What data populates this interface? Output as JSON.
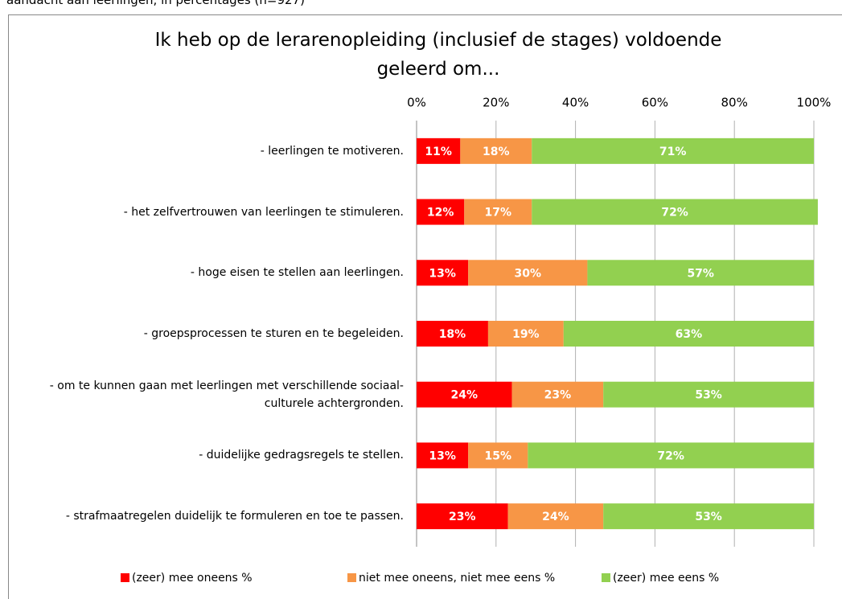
{
  "caption": "aandacht aan leerlingen, in percentages (n=927)",
  "chart_data": {
    "type": "stacked-barh",
    "title": "Ik heb op de lerarenopleiding (inclusief de stages) voldoende geleerd om...",
    "categories": [
      "- leerlingen te motiveren.",
      "- het zelfvertrouwen van leerlingen te stimuleren.",
      "- hoge eisen te stellen aan leerlingen.",
      "- groepsprocessen te sturen en te begeleiden.",
      "- om te kunnen gaan met leerlingen met verschillende sociaal-culturele achtergronden.",
      "- duidelijke gedragsregels te stellen.",
      "- strafmaatregelen duidelijk te formuleren en toe te passen."
    ],
    "series": [
      {
        "name": "(zeer) mee oneens %",
        "color": "#ff0000",
        "values": [
          11,
          12,
          13,
          18,
          24,
          13,
          23
        ],
        "value_labels": [
          "11%",
          "12%",
          "13%",
          "18%",
          "24%",
          "13%",
          "23%"
        ]
      },
      {
        "name": "niet mee oneens, niet mee eens %",
        "color": "#f79646",
        "values": [
          18,
          17,
          30,
          19,
          23,
          15,
          24
        ],
        "value_labels": [
          "18%",
          "17%",
          "30%",
          "19%",
          "23%",
          "15%",
          "24%"
        ]
      },
      {
        "name": "(zeer) mee eens %",
        "color": "#92d050",
        "values": [
          71,
          72,
          57,
          63,
          53,
          72,
          53
        ],
        "value_labels": [
          "71%",
          "72%",
          "57%",
          "63%",
          "53%",
          "72%",
          "53%"
        ]
      }
    ],
    "xlim": [
      0,
      100
    ],
    "xticks": [
      {
        "value": 0,
        "label": "0%"
      },
      {
        "value": 20,
        "label": "20%"
      },
      {
        "value": 40,
        "label": "40%"
      },
      {
        "value": 60,
        "label": "60%"
      },
      {
        "value": 80,
        "label": "80%"
      },
      {
        "value": 100,
        "label": "100%"
      }
    ],
    "grid": true,
    "legend": "bottom"
  }
}
